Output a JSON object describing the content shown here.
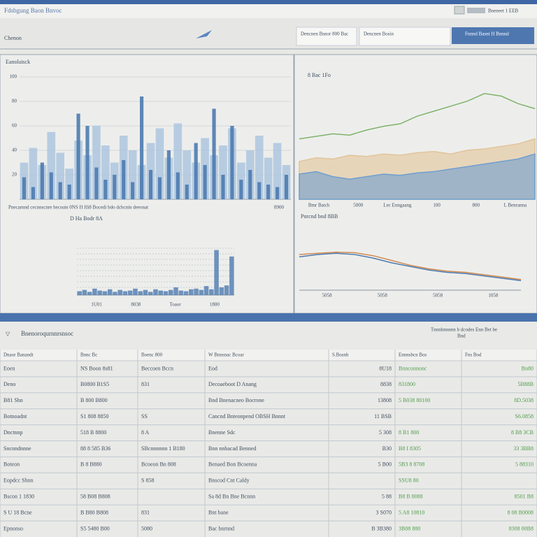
{
  "header": {
    "title": "Fdsbgung Baon Bnvoc",
    "subtitle": "Chenon",
    "status": "Bneneet 1 EEB",
    "tabs": [
      "Dencnen Bsnor 800 Bac",
      "Dencnen Bosin",
      "Fnnnd Basnt H Bnnnd"
    ]
  },
  "panels": [
    {
      "type": "bar",
      "title": "Eanolaisck",
      "ylim": [
        0,
        100
      ],
      "yticks": [
        20,
        40,
        60,
        80,
        100
      ],
      "caption": "Pnecarnnd cecnnscnre hecsuin 0NS H Hi8 Bocedi bdo dcbcnin deeonat",
      "note": "8900",
      "series": [
        {
          "color": "#a9c3de",
          "values": [
            30,
            42,
            28,
            55,
            38,
            25,
            48,
            36,
            60,
            44,
            30,
            52,
            40,
            28,
            46,
            58,
            34,
            62,
            40,
            30,
            50,
            36,
            44,
            58,
            30,
            40,
            52,
            34,
            46,
            28
          ]
        },
        {
          "color": "#4d7bb0",
          "values": [
            18,
            10,
            30,
            22,
            14,
            12,
            70,
            60,
            26,
            16,
            20,
            32,
            14,
            84,
            24,
            18,
            40,
            22,
            12,
            46,
            28,
            74,
            20,
            60,
            16,
            24,
            14,
            12,
            10,
            20
          ]
        }
      ]
    },
    {
      "type": "bar",
      "title": "D Ha Bodr 8A",
      "ylim": [
        0,
        100
      ],
      "x_labels": [
        "1U01",
        "8038",
        "Toaor",
        "1800"
      ],
      "series": [
        {
          "color": "#4d7bb0",
          "values": [
            6,
            8,
            5,
            10,
            7,
            6,
            9,
            5,
            8,
            6,
            7,
            10,
            6,
            8,
            5,
            9,
            7,
            6,
            8,
            12,
            7,
            6,
            9,
            10,
            8,
            14,
            9,
            70,
            12,
            15,
            60
          ]
        }
      ]
    },
    {
      "type": "area",
      "title": "8 Bac 1Fo",
      "ylim": [
        0,
        100
      ],
      "x_labels": [
        "Bmr Batch",
        "5000",
        "Lec Enngaang",
        "100",
        "800",
        "L Benranna"
      ],
      "series": [
        {
          "color": "#7fb36a",
          "fill": false,
          "values": [
            48,
            50,
            52,
            51,
            55,
            58,
            60,
            66,
            70,
            74,
            78,
            84,
            82,
            76,
            72
          ]
        },
        {
          "color": "#e2c49a",
          "fill": true,
          "values": [
            30,
            33,
            32,
            35,
            34,
            36,
            35,
            37,
            38,
            36,
            39,
            40,
            42,
            44,
            48
          ]
        },
        {
          "color": "#6f9fcf",
          "fill": true,
          "values": [
            20,
            22,
            18,
            16,
            18,
            20,
            19,
            21,
            22,
            24,
            26,
            28,
            30,
            32,
            36
          ]
        }
      ]
    },
    {
      "type": "line",
      "title": "Pnrcnd bnd 8BB",
      "ylim": [
        0,
        100
      ],
      "x_labels": [
        "5058",
        "5058",
        "5058",
        "1058"
      ],
      "series": [
        {
          "color": "#d08a50",
          "values": [
            60,
            62,
            64,
            63,
            58,
            50,
            42,
            36,
            32,
            30,
            26,
            22,
            18
          ]
        },
        {
          "color": "#4d7bb0",
          "values": [
            56,
            60,
            62,
            60,
            54,
            46,
            40,
            34,
            30,
            28,
            24,
            20,
            16
          ]
        }
      ]
    }
  ],
  "table": {
    "title": "Bnenoroqurnnrsnsoc",
    "note": "Tnnnhnnnnn b dcodes Enn Bet be",
    "note2": "Bnd",
    "header": [
      "Dnaor Banandt",
      "Bnnc Bc",
      "Boenc 800",
      "W Bnnsnac Bcoar",
      "S.Bosnh",
      "Ennnsbcn Bos",
      "Fns Bod"
    ],
    "rows": [
      [
        "Eoen",
        "NS Boon 8s81",
        "Beccoen Bccn",
        "Eod",
        "8U18",
        "Bnnconnonc",
        "Bn80"
      ],
      [
        "Deno",
        "B0800 B1S5",
        "831",
        "Decoaeboot D Anang",
        "8838",
        "831800",
        "5B88B"
      ],
      [
        "B81 Shn",
        "B 800 B800",
        "",
        "Bnd Bnenacneo Bocrone",
        "13808",
        "5 B038 80100",
        "8D.5038"
      ],
      [
        "Botnoadnt",
        "S1 808 8850",
        "SS",
        "Cancnd Bnteonpend OBSH Bnnnt",
        "11 BSB",
        "",
        "S6.0858"
      ],
      [
        "Dnctnnp",
        "518 B 8800",
        "8 A",
        "Bnenne Sdc",
        "5 308",
        "8 B1 800",
        "8 B8 3CB"
      ],
      [
        "Sncnndnnne",
        "88 8 585 B36",
        "SBcnnnnnn 1 B180",
        "Bnn nnbacad Benned",
        "B30",
        "B8 I 8305",
        "33 3BB8"
      ],
      [
        "Boteon",
        "B 8 B880",
        "Bcoeon Bn 808",
        "Benaed Bon Bcoenna",
        "5 B00",
        "5B3 8 8708",
        "5 88310"
      ],
      [
        "Eopdcc Shnn",
        "",
        "S 858",
        "Bnscod Cnt Caldy",
        "",
        "SSU8 80",
        ""
      ],
      [
        "Bscon 1 1830",
        "58 B08 B808",
        "",
        "Sa 8d Bn Bne Bcnnn",
        "5 88",
        "B8 B 8088",
        "8501 B8"
      ],
      [
        "S U 18 Bcne",
        "B B80 B808",
        "831",
        "Bnt bane",
        "3 S070",
        "5 A8 10810",
        "8 08 B0008"
      ],
      [
        "Epnonso",
        "S5 5480 B00",
        "5080",
        "Bac bnrnnd",
        "B 3B380",
        "3B08 880",
        "8308 00B8"
      ]
    ]
  }
}
